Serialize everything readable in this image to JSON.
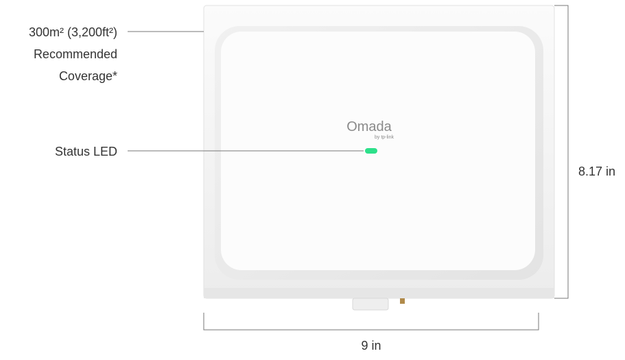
{
  "callouts": [
    {
      "lines": [
        "300m² (3,200ft²)",
        "Recommended",
        "Coverage*"
      ]
    },
    {
      "lines": [
        "Status LED"
      ]
    }
  ],
  "logo": {
    "brand": "Omada",
    "sub": "by tp-link"
  },
  "dimensions": {
    "height": "8.17 in",
    "width": "9 in"
  }
}
